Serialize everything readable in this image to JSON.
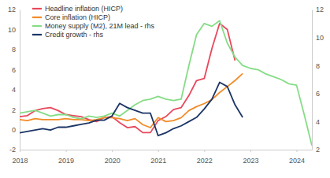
{
  "chart_data": {
    "type": "line",
    "x": [
      2018,
      2018.167,
      2018.333,
      2018.5,
      2018.667,
      2018.833,
      2019,
      2019.167,
      2019.333,
      2019.5,
      2019.667,
      2019.833,
      2020,
      2020.167,
      2020.333,
      2020.5,
      2020.667,
      2020.833,
      2021,
      2021.167,
      2021.333,
      2021.5,
      2021.667,
      2021.833,
      2022,
      2022.167,
      2022.333,
      2022.5,
      2022.667,
      2022.833,
      2023,
      2023.167,
      2023.333,
      2023.5,
      2023.667,
      2023.833,
      2024,
      2024.167,
      2024.333
    ],
    "series": [
      {
        "name": "Headline inflation (HICP)",
        "color": "#e8485c",
        "axis": "y",
        "values": [
          1.3,
          1.4,
          1.9,
          2.1,
          2.2,
          1.9,
          1.5,
          1.4,
          1.3,
          1.0,
          0.8,
          1.2,
          1.3,
          0.7,
          0.2,
          0.3,
          -0.3,
          -0.3,
          0.9,
          1.3,
          2.0,
          2.2,
          3.4,
          4.9,
          5.1,
          8.1,
          10.6,
          10.0,
          6.9,
          null,
          null,
          null,
          null,
          null,
          null,
          null,
          null,
          null,
          null
        ]
      },
      {
        "name": "Core inflation (HICP)",
        "color": "#f28c28",
        "axis": "y",
        "values": [
          1.0,
          0.9,
          1.1,
          1.0,
          1.0,
          1.0,
          1.1,
          1.0,
          1.0,
          0.9,
          1.0,
          1.2,
          1.2,
          1.1,
          0.9,
          1.1,
          0.5,
          0.2,
          1.2,
          0.8,
          0.9,
          1.2,
          1.9,
          2.3,
          2.6,
          3.0,
          3.7,
          4.3,
          4.9,
          5.6,
          null,
          null,
          null,
          null,
          null,
          null,
          null,
          null,
          null
        ]
      },
      {
        "name": "Money supply (M2), 21M lead - rhs",
        "color": "#86dc86",
        "axis": "y2",
        "values": [
          4.6,
          4.7,
          4.8,
          4.6,
          4.4,
          4.5,
          4.5,
          4.3,
          4.2,
          4.4,
          4.3,
          4.4,
          4.6,
          4.4,
          4.8,
          5.2,
          5.5,
          5.6,
          5.8,
          5.6,
          5.5,
          5.6,
          8.0,
          10.2,
          11.0,
          10.8,
          11.2,
          9.6,
          8.6,
          8.0,
          7.8,
          7.7,
          7.4,
          7.2,
          7.0,
          6.7,
          6.6,
          4.5,
          2.3
        ]
      },
      {
        "name": "Credit growth - rhs",
        "color": "#1c3566",
        "axis": "y2",
        "values": [
          3.2,
          3.3,
          3.4,
          3.5,
          3.4,
          3.6,
          3.6,
          3.7,
          3.8,
          3.9,
          4.1,
          4.1,
          4.4,
          5.3,
          5.0,
          4.8,
          4.6,
          4.6,
          3.0,
          3.2,
          3.5,
          3.7,
          4.0,
          4.3,
          4.9,
          5.6,
          6.8,
          6.5,
          5.2,
          4.3,
          null,
          null,
          null,
          null,
          null,
          null,
          null,
          null,
          null
        ]
      }
    ],
    "xlim": [
      2018,
      2024.333
    ],
    "xticks": [
      2018,
      2019,
      2020,
      2021,
      2022,
      2023,
      2024
    ],
    "ylim": [
      -2,
      12
    ],
    "yticks": [
      -2,
      0,
      2,
      4,
      6,
      8,
      10,
      12
    ],
    "y2lim": [
      2,
      12
    ],
    "y2ticks": [
      2,
      4,
      6,
      8,
      10,
      12
    ],
    "legend": "top-left",
    "grid": false
  }
}
